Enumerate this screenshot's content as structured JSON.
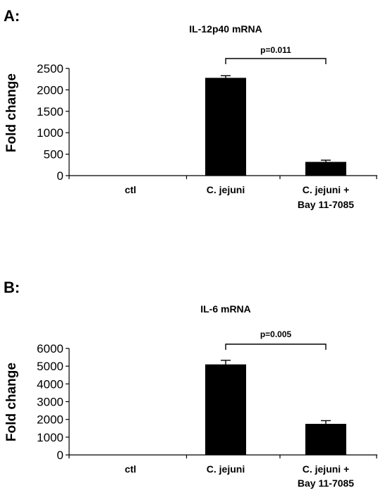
{
  "chart_data": [
    {
      "type": "bar",
      "panel_label": "A:",
      "title": "IL-12p40 mRNA",
      "ylabel": "Fold change",
      "xlabel": "",
      "categories": [
        [
          "ctl"
        ],
        [
          "C. jejuni"
        ],
        [
          "C. jejuni +",
          "Bay 11-7085"
        ]
      ],
      "values": [
        0,
        2280,
        320
      ],
      "errors": [
        0,
        50,
        40
      ],
      "ylim": [
        0,
        2500
      ],
      "yticks": [
        0,
        500,
        1000,
        1500,
        2000,
        2500
      ],
      "grid": false,
      "bar_color": "#000000",
      "comparison": {
        "from": 1,
        "to": 2,
        "label": "p=0.011"
      }
    },
    {
      "type": "bar",
      "panel_label": "B:",
      "title": "IL-6 mRNA",
      "ylabel": "Fold change",
      "xlabel": "",
      "categories": [
        [
          "ctl"
        ],
        [
          "C. jejuni"
        ],
        [
          "C. jejuni +",
          "Bay 11-7085"
        ]
      ],
      "values": [
        0,
        5100,
        1750
      ],
      "errors": [
        0,
        230,
        180
      ],
      "ylim": [
        0,
        6000
      ],
      "yticks": [
        0,
        1000,
        2000,
        3000,
        4000,
        5000,
        6000
      ],
      "grid": false,
      "bar_color": "#000000",
      "comparison": {
        "from": 1,
        "to": 2,
        "label": "p=0.005"
      }
    }
  ]
}
